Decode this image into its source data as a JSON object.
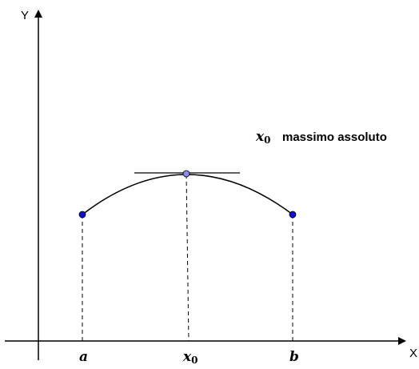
{
  "axes": {
    "x_label": "X",
    "y_label": "Y"
  },
  "points": {
    "a": {
      "label": "a"
    },
    "x0": {
      "label": "x",
      "subscript": "0"
    },
    "b": {
      "label": "b"
    }
  },
  "annotation": {
    "var": "x",
    "sub": "0",
    "text": "massimo assoluto"
  },
  "colors": {
    "endpoint": "#1010d0",
    "max_point": "#8a8af0",
    "line": "#000000"
  }
}
